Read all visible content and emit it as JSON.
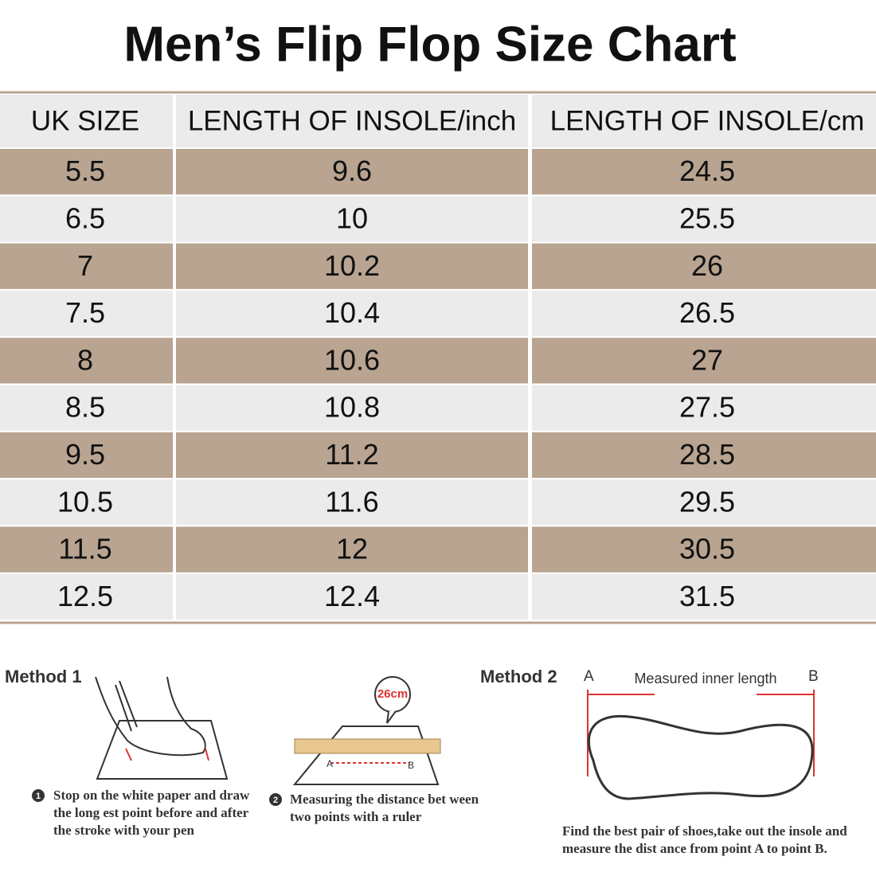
{
  "header": {
    "title": "Men’s Flip Flop Size Chart"
  },
  "table": {
    "columns": [
      "UK SIZE",
      "LENGTH OF INSOLE/inch",
      "LENGTH OF INSOLE/cm"
    ],
    "rows": [
      [
        "5.5",
        "9.6",
        "24.5"
      ],
      [
        "6.5",
        "10",
        "25.5"
      ],
      [
        "7",
        "10.2",
        "26"
      ],
      [
        "7.5",
        "10.4",
        "26.5"
      ],
      [
        "8",
        "10.6",
        "27"
      ],
      [
        "8.5",
        "10.8",
        "27.5"
      ],
      [
        "9.5",
        "11.2",
        "28.5"
      ],
      [
        "10.5",
        "11.6",
        "29.5"
      ],
      [
        "11.5",
        "12",
        "30.5"
      ],
      [
        "12.5",
        "12.4",
        "31.5"
      ]
    ]
  },
  "method1": {
    "title": "Method 1",
    "steps": [
      {
        "marker": "1",
        "lines": [
          "Stop on the white paper and draw",
          "the long est point before and after",
          "the stroke with your pen"
        ]
      },
      {
        "marker": "2",
        "lines": [
          "Measuring the distance bet ween",
          "two points with a ruler"
        ]
      }
    ],
    "bubble": "26cm",
    "point_a": "A",
    "point_b": "B"
  },
  "method2": {
    "title": "Method 2",
    "point_a": "A",
    "point_b": "B",
    "measure_label": "Measured inner length",
    "lines": [
      "Find the best pair of shoes,take out the insole and",
      "measure the dist ance from point A to point B."
    ]
  }
}
